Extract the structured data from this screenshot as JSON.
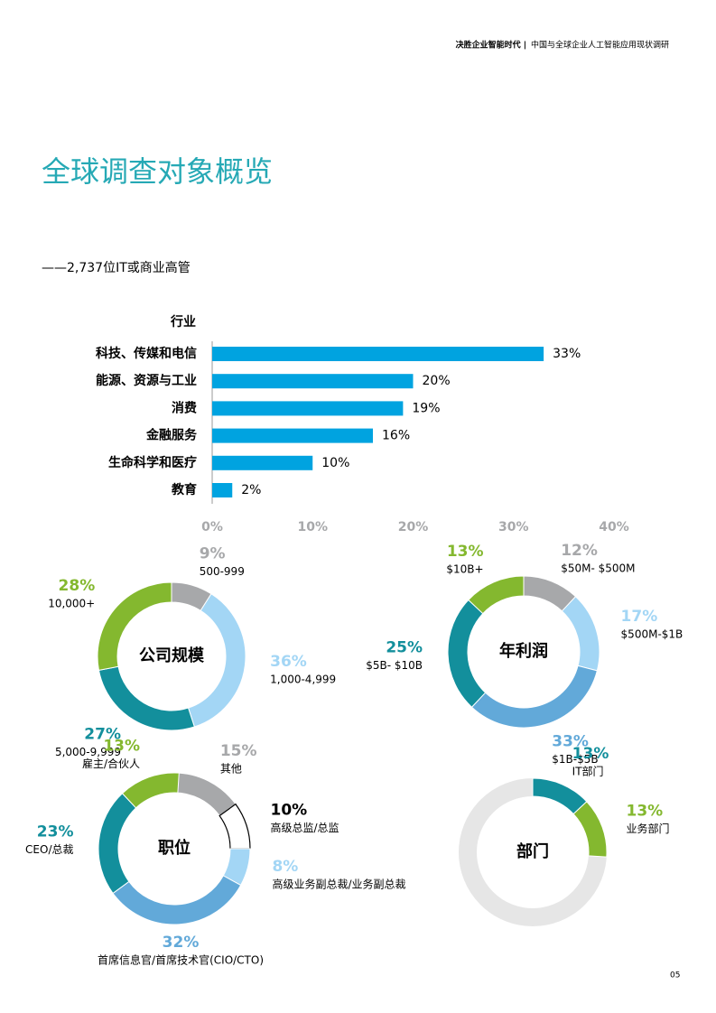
{
  "header": {
    "brand": "决胜企业智能时代 |",
    "subtitle": "中国与全球企业人工智能应用现状调研"
  },
  "title": "全球调查对象概览",
  "subtitle": "——2,737位IT或商业高管",
  "page_number": "05",
  "chart_data": [
    {
      "type": "bar",
      "orientation": "horizontal",
      "axis_title": "行业",
      "color": "#00a3e0",
      "categories": [
        "科技、传媒和电信",
        "能源、资源与工业",
        "消费",
        "金融服务",
        "生命科学和医疗",
        "教育"
      ],
      "values": [
        33,
        20,
        19,
        16,
        10,
        2
      ],
      "value_labels": [
        "33%",
        "20%",
        "19%",
        "16%",
        "10%",
        "2%"
      ],
      "xlim": [
        0,
        40
      ],
      "xticks": [
        {
          "value": 0,
          "label": "0%"
        },
        {
          "value": 10,
          "label": "10%"
        },
        {
          "value": 20,
          "label": "20%"
        },
        {
          "value": 30,
          "label": "30%"
        },
        {
          "value": 40,
          "label": "40%"
        }
      ]
    },
    {
      "type": "donut",
      "center_label": "公司规模",
      "categories": [
        "500-999",
        "1,000-4,999",
        "5,000-9,999",
        "10,000+"
      ],
      "values": [
        9,
        36,
        27,
        28
      ],
      "value_labels": [
        "9%",
        "36%",
        "27%",
        "28%"
      ],
      "colors": [
        "#a7a8aa",
        "#a3d6f5",
        "#138f9c",
        "#84b82f"
      ]
    },
    {
      "type": "donut",
      "center_label": "年利润",
      "categories": [
        "$50M- $500M",
        "$500M-$1B",
        "$1B-$5B",
        "$5B- $10B",
        "$10B+"
      ],
      "values": [
        12,
        17,
        33,
        25,
        13
      ],
      "value_labels": [
        "12%",
        "17%",
        "33%",
        "25%",
        "13%"
      ],
      "colors": [
        "#a7a8aa",
        "#a3d6f5",
        "#62a9d9",
        "#138f9c",
        "#84b82f"
      ]
    },
    {
      "type": "donut",
      "center_label": "职位",
      "categories": [
        "其他",
        "高级总监/总监",
        "高级业务副总裁/业务副总裁",
        "首席信息官/首席技术官(CIO/CTO)",
        "CEO/总裁",
        "雇主/合伙人"
      ],
      "values": [
        15,
        10,
        8,
        32,
        23,
        13
      ],
      "value_labels": [
        "15%",
        "10%",
        "8%",
        "32%",
        "23%",
        "13%"
      ],
      "colors": [
        "#a7a8aa",
        "#ffffff",
        "#a3d6f5",
        "#62a9d9",
        "#138f9c",
        "#84b82f"
      ]
    },
    {
      "type": "donut",
      "center_label": "部门",
      "categories": [
        "IT部门",
        "业务部门"
      ],
      "values": [
        13,
        13
      ],
      "value_labels": [
        "13%",
        "13%"
      ],
      "colors": [
        "#138f9c",
        "#84b82f"
      ]
    }
  ]
}
